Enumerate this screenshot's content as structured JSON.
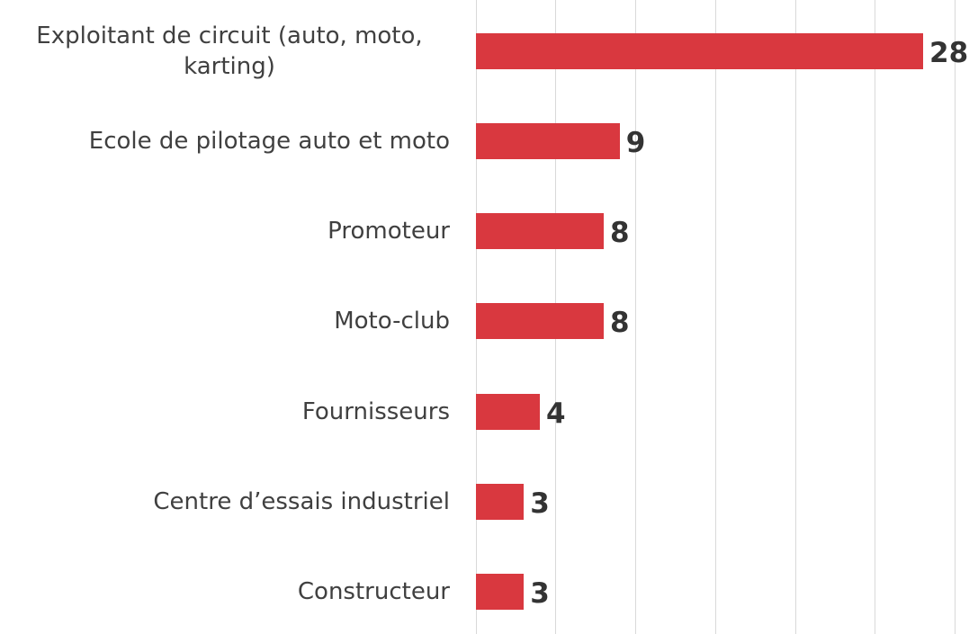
{
  "chart_data": {
    "type": "bar",
    "orientation": "horizontal",
    "categories": [
      "Exploitant de circuit (auto, moto, karting)",
      "Ecole de pilotage auto et moto",
      "Promoteur",
      "Moto-club",
      "Fournisseurs",
      "Centre d’essais industriel",
      "Constructeur"
    ],
    "values": [
      28,
      9,
      8,
      8,
      4,
      3,
      3
    ],
    "color": "#d9383f",
    "xlim": [
      0,
      30
    ],
    "xticks": [
      0,
      5,
      10,
      15,
      20,
      25,
      30
    ],
    "grid": true
  }
}
